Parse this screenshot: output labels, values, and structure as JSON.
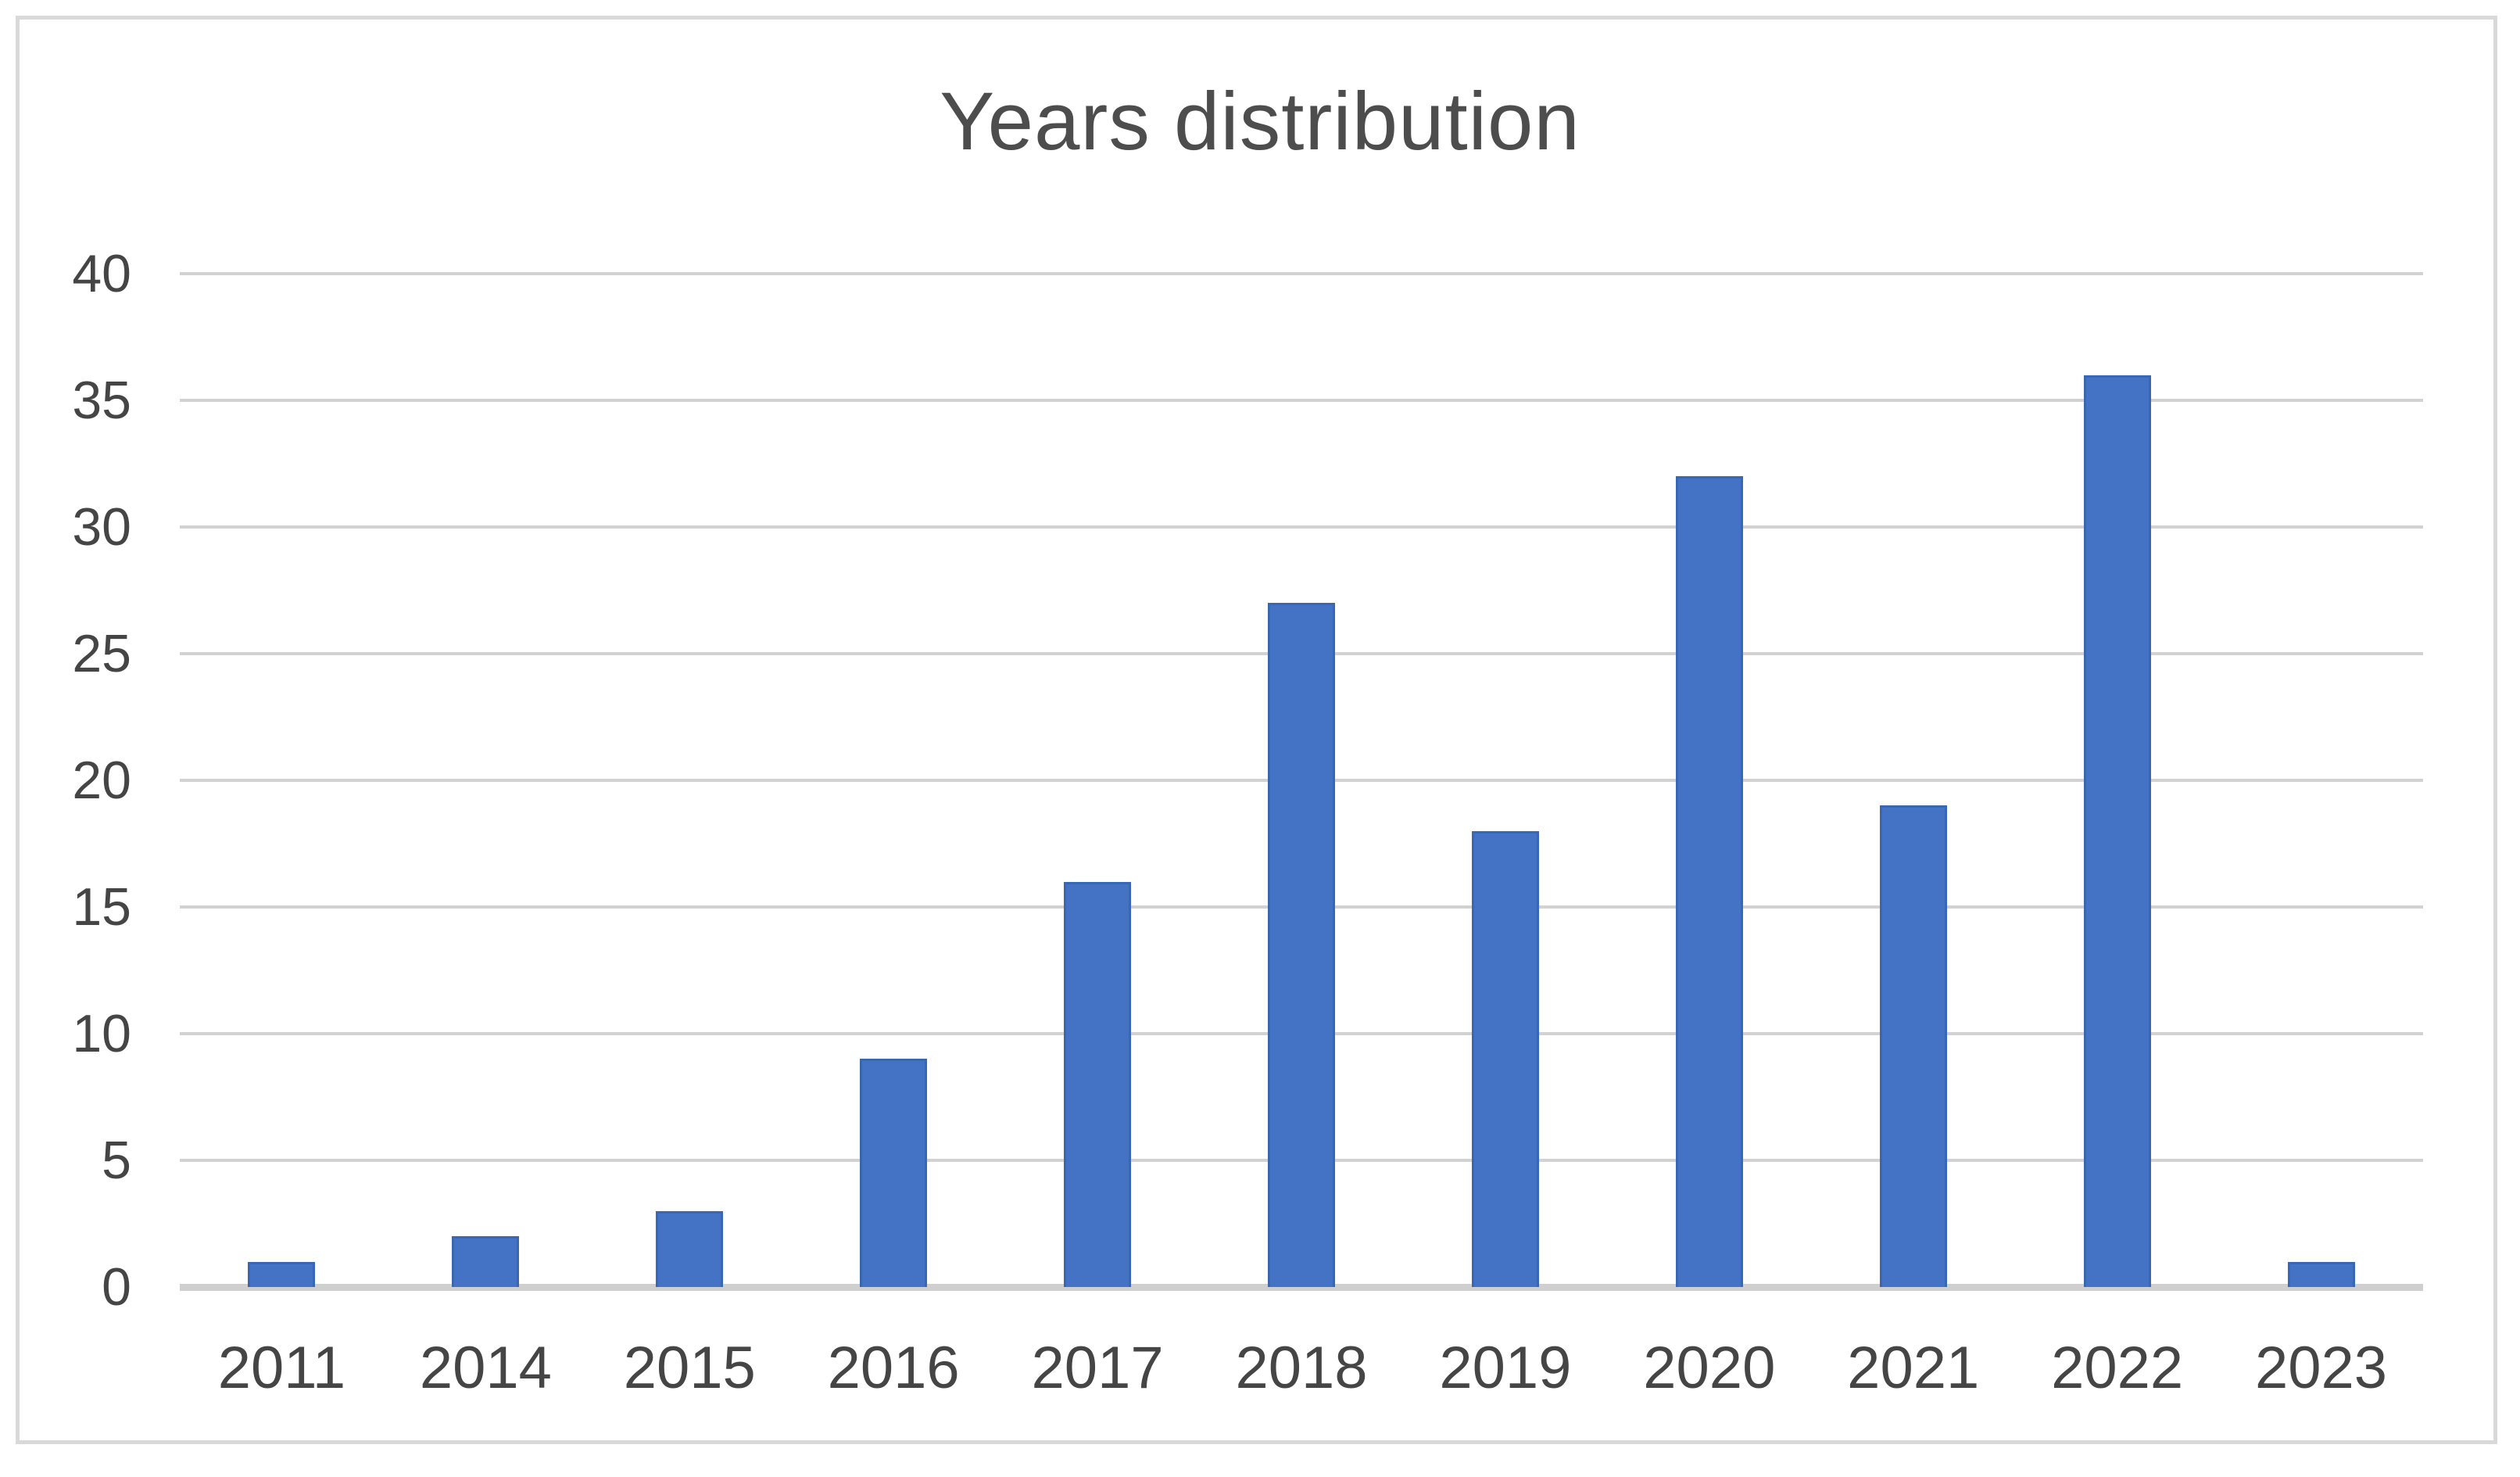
{
  "chart_data": {
    "type": "bar",
    "title": "Years distribution",
    "categories": [
      "2011",
      "2014",
      "2015",
      "2016",
      "2017",
      "2018",
      "2019",
      "2020",
      "2021",
      "2022",
      "2023"
    ],
    "values": [
      1,
      2,
      3,
      9,
      16,
      27,
      18,
      32,
      19,
      36,
      1
    ],
    "xlabel": "",
    "ylabel": "",
    "ylim": [
      0,
      40
    ],
    "yticks": [
      0,
      5,
      10,
      15,
      20,
      25,
      30,
      35,
      40
    ],
    "grid": true,
    "legend_position": "none",
    "bar_color": "#4472C4",
    "bar_border_color": "#3767B5",
    "gridline_color": "#D2D2D2",
    "axis_line_color": "#CFCFCF",
    "tick_label_color": "#454545",
    "title_color": "#4D4D4D",
    "frame_border_color": "#D9D9D9",
    "background_color": "#FFFFFF"
  }
}
